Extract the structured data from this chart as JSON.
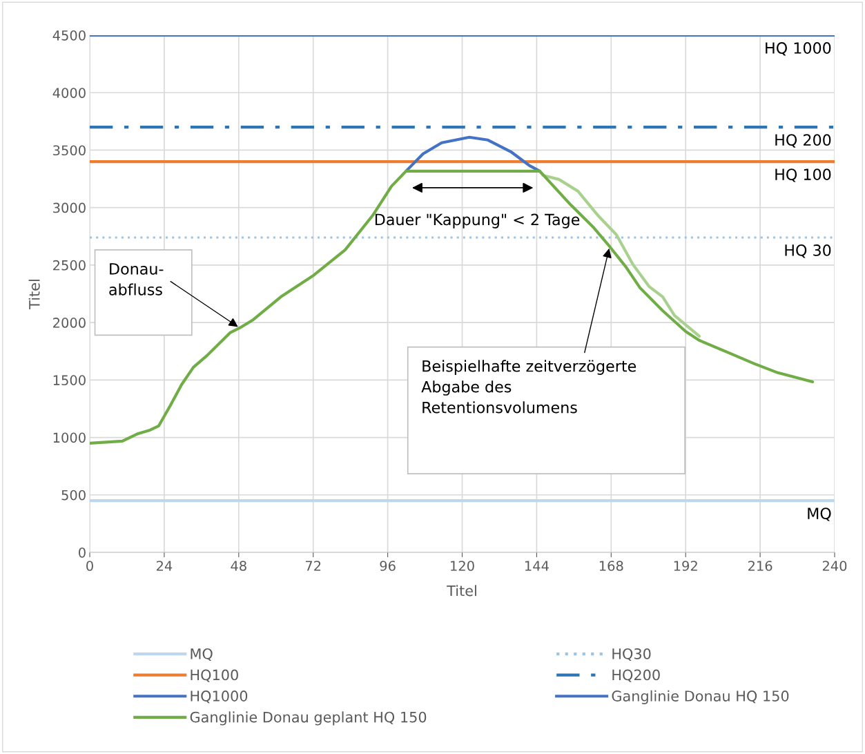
{
  "chart_data": {
    "type": "line",
    "xlabel": "Titel",
    "ylabel": "Titel",
    "xlim": [
      0,
      240
    ],
    "xticks": [
      0,
      24,
      48,
      72,
      96,
      120,
      144,
      168,
      192,
      216,
      240
    ],
    "ylim": [
      0,
      4500
    ],
    "yticks": [
      0,
      500,
      1000,
      1500,
      2000,
      2500,
      3000,
      3500,
      4000,
      4500
    ],
    "grid": true,
    "legend": "bottom",
    "series": [
      {
        "name": "MQ",
        "color": "#bdd7ee",
        "line_style": "solid",
        "x": [
          0,
          240
        ],
        "values": [
          450,
          450
        ]
      },
      {
        "name": "HQ30",
        "color": "#9dc3e6",
        "line_style": "dotted",
        "x": [
          0,
          240
        ],
        "values": [
          2740,
          2740
        ]
      },
      {
        "name": "HQ100",
        "color": "#ed7d31",
        "line_style": "solid",
        "x": [
          0,
          240
        ],
        "values": [
          3400,
          3400
        ]
      },
      {
        "name": "HQ200",
        "color": "#2e75b6",
        "line_style": "dashdot",
        "x": [
          0,
          240
        ],
        "values": [
          3700,
          3700
        ]
      },
      {
        "name": "HQ1000",
        "color": "#4472c4",
        "line_style": "solid",
        "x": [
          0,
          240
        ],
        "values": [
          4500,
          4500
        ]
      },
      {
        "name": "Ganglinie Donau HQ 150",
        "color": "#4472c4",
        "line_style": "solid",
        "x": [
          101.9,
          107.4,
          113.4,
          122.3,
          128.3,
          135.7,
          141.7,
          145.0
        ],
        "values": [
          3317,
          3468,
          3564,
          3612,
          3588,
          3486,
          3365,
          3317
        ]
      },
      {
        "color": "#a9d18e",
        "line_style": "solid",
        "x": [
          145.0,
          146.1,
          151.2,
          157.3,
          163.9,
          169.7,
          175.0,
          180.2,
          184.6,
          188.4,
          196.4
        ],
        "values": [
          3317,
          3281,
          3245,
          3143,
          2927,
          2764,
          2506,
          2314,
          2224,
          2061,
          1881
        ]
      },
      {
        "name": "Ganglinie Donau geplant HQ 150",
        "color": "#70ad47",
        "line_style": "solid",
        "x": [
          0,
          10.5,
          15.6,
          19.4,
          22.2,
          26.0,
          29.6,
          33.4,
          37.8,
          45.2,
          48.3,
          52.7,
          61.6,
          71.8,
          82.3,
          91.2,
          97.2,
          101.9,
          145.0,
          155.0,
          162.4,
          167.5,
          172.8,
          177.3,
          184.6,
          192.0,
          196.4,
          206.9,
          214.2,
          221.7,
          232.9
        ],
        "values": [
          950,
          968,
          1034,
          1064,
          1100,
          1280,
          1460,
          1611,
          1713,
          1911,
          1953,
          2025,
          2224,
          2404,
          2632,
          2933,
          3185,
          3317,
          3317,
          3023,
          2825,
          2662,
          2482,
          2302,
          2103,
          1923,
          1845,
          1725,
          1641,
          1563,
          1484
        ]
      }
    ],
    "annotations": [
      {
        "text": "HQ 1000",
        "x": 240,
        "y": 4500
      },
      {
        "text": "HQ 200",
        "x": 240,
        "y": 3700
      },
      {
        "text": "HQ 100",
        "x": 240,
        "y": 3400
      },
      {
        "text": "HQ 30",
        "x": 240,
        "y": 2740
      },
      {
        "text": "MQ",
        "x": 240,
        "y": 450
      },
      {
        "text": "Donau-\nabfluss",
        "x": 48.3,
        "y": 1953
      },
      {
        "text": "Beispielhafte zeitverzögerte\nAbgabe des\nRetentionsvolumens",
        "x": 167.5,
        "y": 2662
      },
      "Dauer \"Kappung\" < 2 Tage"
    ]
  }
}
